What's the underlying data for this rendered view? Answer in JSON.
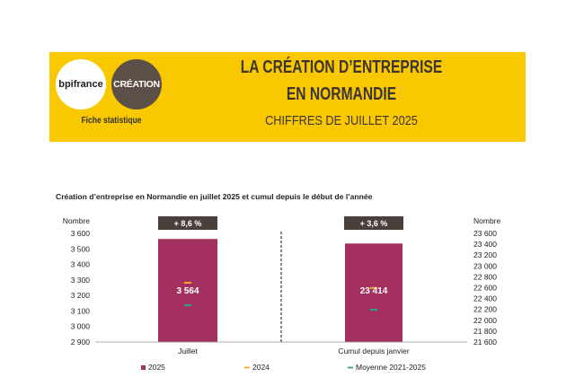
{
  "header": {
    "logo_bpi": "bpifrance",
    "logo_creation": "CRÉATION",
    "fiche": "Fiche statistique",
    "title_line1": "LA CRÉATION D’ENTREPRISE",
    "title_line2": "EN NORMANDIE",
    "subtitle": "CHIFFRES DE JUILLET 2025"
  },
  "colors": {
    "banner": "#f9c800",
    "bar": "#a3305f",
    "marker_2024": "#f0b020",
    "marker_avg": "#2aa58a",
    "badge": "#4a403b"
  },
  "chart_data": [
    {
      "type": "bar",
      "title": "Création d’entreprise en Normandie en juillet 2025 et cumul depuis le début de l’année",
      "categories": [
        "Juillet"
      ],
      "ylabel": "Nombre",
      "ylim": [
        2900,
        3600
      ],
      "yticks": [
        "3 600",
        "3 500",
        "3 400",
        "3 300",
        "3 200",
        "3 100",
        "3 000",
        "2 900"
      ],
      "series": [
        {
          "name": "2025",
          "values": [
            3564
          ],
          "label": "3 564"
        },
        {
          "name": "2024",
          "values": [
            3282
          ]
        },
        {
          "name": "Moyenne 2021-2025",
          "values": [
            3137
          ]
        }
      ],
      "badge": "+ 8,6 %"
    },
    {
      "type": "bar",
      "categories": [
        "Cumul depuis janvier"
      ],
      "ylabel": "Nombre",
      "ylim": [
        21600,
        23600
      ],
      "yticks": [
        "23 600",
        "23 400",
        "23 200",
        "23 000",
        "22 800",
        "22 600",
        "22 400",
        "22 200",
        "22 000",
        "21 800",
        "21 600"
      ],
      "series": [
        {
          "name": "2025",
          "values": [
            23414
          ],
          "label": "23 414"
        },
        {
          "name": "2024",
          "values": [
            22596
          ]
        },
        {
          "name": "Moyenne 2021-2025",
          "values": [
            22193
          ]
        }
      ],
      "badge": "+ 3,6 %"
    }
  ],
  "legend": [
    "2025",
    "2024",
    "Moyenne 2021-2025"
  ]
}
